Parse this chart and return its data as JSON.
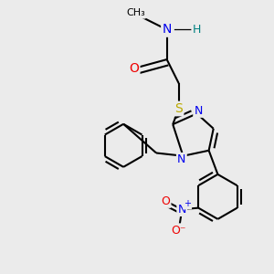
{
  "bg_color": "#ebebeb",
  "atom_colors": {
    "C": "#000000",
    "N": "#0000ee",
    "O": "#ee0000",
    "S": "#bbaa00",
    "H": "#008080"
  },
  "bond_color": "#000000",
  "bond_width": 1.5,
  "font_size": 10,
  "font_size_small": 9
}
